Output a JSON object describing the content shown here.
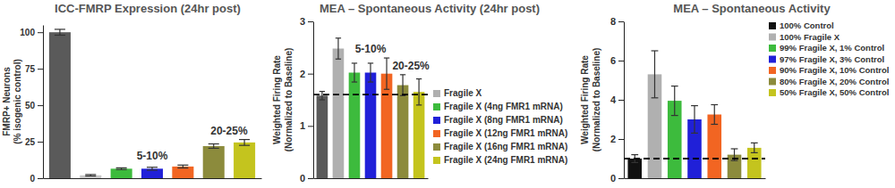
{
  "chart_data": [
    {
      "type": "bar",
      "title": "ICC-FMRP Expression (24hr post)",
      "y_label": [
        "FMRP+ Neurons",
        "(% isogenic control)"
      ],
      "categories": [
        null,
        null,
        null,
        null,
        null,
        null,
        null
      ],
      "values": [
        100,
        2,
        6.5,
        6.5,
        8,
        22,
        24.5
      ],
      "errors": [
        2,
        0.5,
        0.6,
        1,
        1,
        1.5,
        2
      ],
      "colors": [
        "#5a5a5a",
        "#c8c8c8",
        "#3dbb3d",
        "#2020d8",
        "#f26522",
        "#8c8b3c",
        "#c4c41e"
      ],
      "annotations": [
        "5-10%",
        "20-25%"
      ],
      "ylim": [
        0,
        105
      ],
      "yticks": [
        0,
        25,
        50,
        75,
        100
      ],
      "tick_labels": "y"
    },
    {
      "type": "bar",
      "title": "MEA – Spontaneous Activity (24hr post)",
      "y_label": [
        "Weighted Firing Rate",
        "(Normalized to Baseline)"
      ],
      "categories": [
        null,
        null,
        null,
        null,
        null,
        null,
        null
      ],
      "series": [
        {
          "color": "#5a5a5a",
          "values": [
            1.58,
            null,
            null,
            null,
            null,
            null,
            null
          ],
          "errors": [
            0.08,
            null,
            null,
            null,
            null,
            null,
            null
          ]
        },
        {
          "name": "Fragile X",
          "color": "#b0b0b0",
          "values": [
            null,
            2.48,
            null,
            null,
            null,
            null,
            null
          ],
          "errors": [
            null,
            0.2,
            null,
            null,
            null,
            null,
            null
          ]
        },
        {
          "name": "Fragile X (4ng FMR1 mRNA)",
          "color": "#3dbb3d",
          "values": [
            null,
            null,
            2.02,
            null,
            null,
            null,
            null
          ],
          "errors": [
            null,
            null,
            0.18,
            null,
            null,
            null,
            null
          ]
        },
        {
          "name": "Fragile X (8ng FMR1 mRNA)",
          "color": "#2020d8",
          "values": [
            null,
            null,
            null,
            2.02,
            null,
            null,
            null
          ],
          "errors": [
            null,
            null,
            null,
            0.18,
            null,
            null,
            null
          ]
        },
        {
          "name": "Fragile X (12ng FMR1 mRNA)",
          "color": "#f26522",
          "values": [
            null,
            null,
            null,
            null,
            2.0,
            null,
            null
          ],
          "errors": [
            null,
            null,
            null,
            null,
            0.3,
            null,
            null
          ]
        },
        {
          "name": "Fragile X (16ng FMR1 mRNA)",
          "color": "#8c8b3c",
          "values": [
            null,
            null,
            null,
            null,
            null,
            1.78,
            null
          ],
          "errors": [
            null,
            null,
            null,
            null,
            null,
            0.2,
            null
          ]
        },
        {
          "name": "Fragile X (24ng FMR1 mRNA)",
          "color": "#c4c41e",
          "values": [
            null,
            null,
            null,
            null,
            null,
            null,
            1.65
          ],
          "errors": [
            null,
            null,
            null,
            null,
            null,
            null,
            0.25
          ]
        }
      ],
      "reference_line": 1.6,
      "annotations": [
        "5-10%",
        "20-25%"
      ],
      "ylim": [
        0,
        3
      ],
      "yticks": [
        0,
        1,
        2,
        3
      ],
      "legend": "right",
      "tick_labels": "y"
    },
    {
      "type": "bar",
      "title": "MEA – Spontaneous Activity",
      "y_label": [
        "Weighted Firing Rate",
        "(Normalized to Baseline)"
      ],
      "categories": [
        null,
        null,
        null,
        null,
        null,
        null,
        null
      ],
      "series": [
        {
          "name": "100% Control",
          "color": "#111111",
          "values": [
            1.0,
            null,
            null,
            null,
            null,
            null,
            null
          ],
          "errors": [
            0.2,
            null,
            null,
            null,
            null,
            null,
            null
          ]
        },
        {
          "name": "100% Fragile X",
          "color": "#b0b0b0",
          "values": [
            null,
            5.3,
            null,
            null,
            null,
            null,
            null
          ],
          "errors": [
            null,
            1.2,
            null,
            null,
            null,
            null,
            null
          ]
        },
        {
          "name": "99% Fragile X, 1% Control",
          "color": "#3dbb3d",
          "values": [
            null,
            null,
            3.95,
            null,
            null,
            null,
            null
          ],
          "errors": [
            null,
            null,
            0.75,
            null,
            null,
            null,
            null
          ]
        },
        {
          "name": "97% Fragile X, 3% Control",
          "color": "#2020d8",
          "values": [
            null,
            null,
            null,
            3.0,
            null,
            null,
            null
          ],
          "errors": [
            null,
            null,
            null,
            0.7,
            null,
            null,
            null
          ]
        },
        {
          "name": "90% Fragile X, 10% Control",
          "color": "#f26522",
          "values": [
            null,
            null,
            null,
            null,
            3.25,
            null,
            null
          ],
          "errors": [
            null,
            null,
            null,
            null,
            0.5,
            null,
            null
          ]
        },
        {
          "name": "80% Fragile X, 20% Control",
          "color": "#8c8b3c",
          "values": [
            null,
            null,
            null,
            null,
            null,
            1.2,
            null
          ],
          "errors": [
            null,
            null,
            null,
            null,
            null,
            0.3,
            null
          ]
        },
        {
          "name": "50% Fragile X, 50% Control",
          "color": "#c4c41e",
          "values": [
            null,
            null,
            null,
            null,
            null,
            null,
            1.55
          ],
          "errors": [
            null,
            null,
            null,
            null,
            null,
            null,
            0.25
          ]
        }
      ],
      "reference_line": 1.0,
      "ylim": [
        0,
        8
      ],
      "yticks": [
        0,
        2,
        4,
        6,
        8
      ],
      "legend": "right",
      "tick_labels": "y"
    }
  ]
}
